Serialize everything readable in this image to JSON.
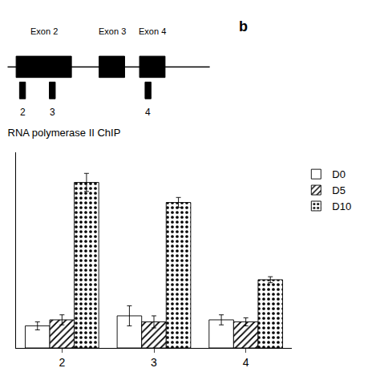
{
  "chart_data": {
    "type": "bar",
    "title": "RNA polymerase II ChIP",
    "categories": [
      "2",
      "3",
      "4"
    ],
    "series": [
      {
        "name": "D0",
        "color": "#ffffff",
        "values": [
          0.22,
          0.32,
          0.28
        ],
        "errors": [
          0.04,
          0.1,
          0.05
        ]
      },
      {
        "name": "D5",
        "color": "#ffffff",
        "values": [
          0.28,
          0.26,
          0.26
        ],
        "errors": [
          0.05,
          0.06,
          0.04
        ]
      },
      {
        "name": "D10",
        "color": "#ffffff",
        "values": [
          1.65,
          1.45,
          0.68
        ],
        "errors": [
          0.09,
          0.05,
          0.03
        ]
      }
    ],
    "ylim": [
      0,
      1.95
    ],
    "tick_labels": "x",
    "grid": false,
    "legend": "right",
    "annotations": [
      "b",
      "Exon 2",
      "Exon 3",
      "Exon 4",
      "2",
      "3",
      "4"
    ]
  }
}
